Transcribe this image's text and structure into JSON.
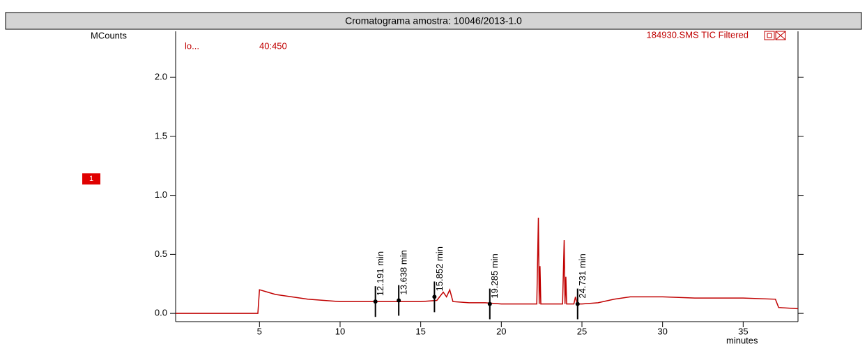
{
  "chart_data": {
    "type": "line",
    "title": "Cromatograma amostra: 10046/2013-1.0",
    "y_label": "MCounts",
    "x_label": "minutes",
    "legend_left": [
      "lo...",
      "40:450"
    ],
    "trace_name": "184930.SMS TIC Filtered",
    "marker_box": "1",
    "xlim": [
      -0.2,
      38.4
    ],
    "ylim": [
      -0.07,
      2.39
    ],
    "xticks": [
      5,
      10,
      15,
      20,
      25,
      30,
      35
    ],
    "yticks": [
      {
        "value": 0,
        "label": "0.0"
      },
      0.5,
      {
        "value": 1,
        "label": "1.0"
      },
      1.5,
      {
        "value": 2,
        "label": "2.0"
      }
    ],
    "series": [
      {
        "name": "184930.SMS TIC Filtered",
        "color": "#c00000",
        "x": [
          -0.2,
          4.9,
          5.0,
          5.5,
          6,
          7,
          8,
          9,
          10,
          11,
          12,
          13,
          14,
          15,
          16,
          16.4,
          16.6,
          16.8,
          17,
          18,
          19,
          20,
          21,
          22.2,
          22.3,
          22.35,
          22.4,
          22.45,
          23,
          23.8,
          23.9,
          23.95,
          24.0,
          24.05,
          24.5,
          24.6,
          24.7,
          25,
          26,
          27,
          28,
          30,
          32,
          35,
          37,
          37.2,
          38.4
        ],
        "values": [
          0,
          0,
          0.2,
          0.18,
          0.16,
          0.14,
          0.12,
          0.11,
          0.1,
          0.1,
          0.1,
          0.1,
          0.1,
          0.1,
          0.11,
          0.18,
          0.14,
          0.2,
          0.1,
          0.09,
          0.09,
          0.08,
          0.08,
          0.08,
          0.81,
          0.08,
          0.4,
          0.08,
          0.08,
          0.08,
          0.62,
          0.08,
          0.31,
          0.08,
          0.08,
          0.14,
          0.08,
          0.08,
          0.09,
          0.12,
          0.14,
          0.14,
          0.13,
          0.13,
          0.12,
          0.05,
          0.04
        ]
      }
    ],
    "annotations": [
      {
        "x": 12.191,
        "y": 0.1,
        "label": "12.191 min"
      },
      {
        "x": 13.638,
        "y": 0.11,
        "label": "13.638 min"
      },
      {
        "x": 15.852,
        "y": 0.14,
        "label": "15.852 min"
      },
      {
        "x": 19.285,
        "y": 0.08,
        "label": "19.285 min"
      },
      {
        "x": 24.731,
        "y": 0.08,
        "label": "24.731 min"
      }
    ]
  }
}
